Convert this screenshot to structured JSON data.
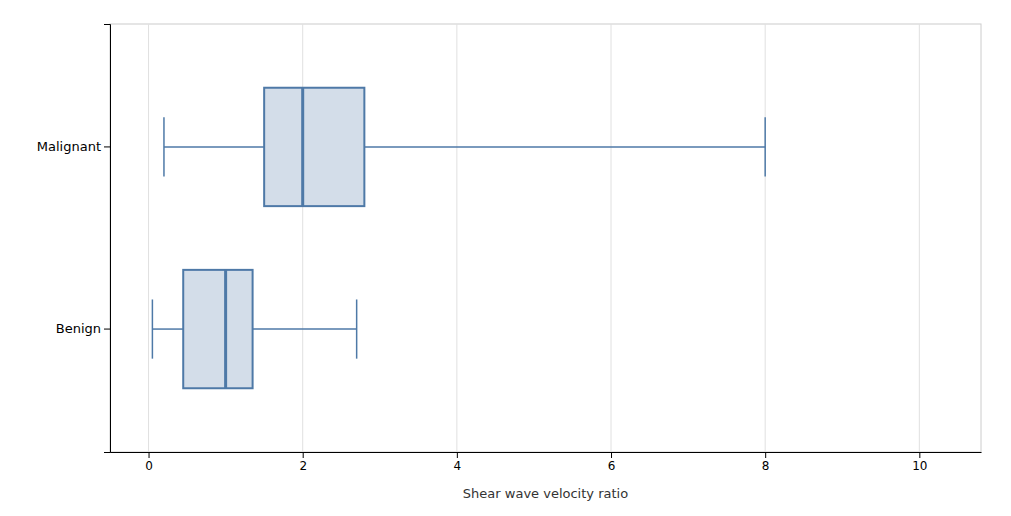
{
  "chart_data": {
    "type": "box",
    "orientation": "horizontal",
    "categories": [
      "Malignant",
      "Benign"
    ],
    "boxes": [
      {
        "whisker_min": 0.2,
        "q1": 1.5,
        "median": 2.0,
        "q3": 2.8,
        "whisker_max": 8.0
      },
      {
        "whisker_min": 0.05,
        "q1": 0.45,
        "median": 1.0,
        "q3": 1.35,
        "whisker_max": 2.7
      }
    ],
    "xlabel": "Shear wave velocity ratio",
    "xlim": [
      -0.5,
      10.8
    ],
    "xticks": [
      0,
      2,
      4,
      6,
      8,
      10
    ],
    "color": "#4e79a7",
    "grid": true
  }
}
